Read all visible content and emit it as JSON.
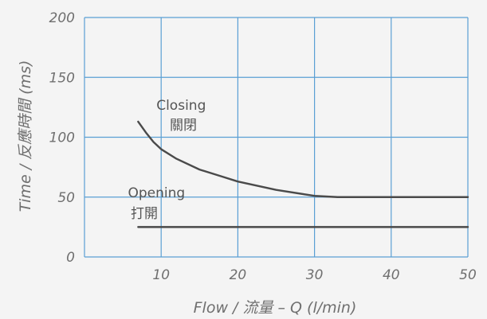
{
  "chart_data": {
    "type": "line",
    "xlabel": "Flow / 流量 – Q (l/min)",
    "ylabel": "Time / 反應時間 (ms)",
    "xlim": [
      0,
      50
    ],
    "ylim": [
      0,
      200
    ],
    "x_ticks": [
      "10",
      "20",
      "30",
      "40",
      "50"
    ],
    "y_ticks": [
      "0",
      "50",
      "100",
      "150",
      "200"
    ],
    "grid": true,
    "colors": {
      "grid": "#5a9fd4",
      "line": "#4a4a4a",
      "background": "#f4f4f4"
    },
    "series": [
      {
        "label": "closing",
        "points": [
          [
            7,
            113
          ],
          [
            8,
            104
          ],
          [
            9,
            96
          ],
          [
            10,
            90
          ],
          [
            12,
            82
          ],
          [
            15,
            73
          ],
          [
            18,
            67
          ],
          [
            20,
            63
          ],
          [
            25,
            56
          ],
          [
            30,
            51
          ],
          [
            33,
            50
          ],
          [
            35,
            50
          ],
          [
            40,
            50
          ],
          [
            45,
            50
          ],
          [
            50,
            50
          ]
        ]
      },
      {
        "label": "opening",
        "points": [
          [
            7,
            25
          ],
          [
            50,
            25
          ]
        ]
      }
    ],
    "annotations": [
      {
        "lines": [
          "Closing",
          "關閉"
        ],
        "series": "closing"
      },
      {
        "lines": [
          "Opening",
          "打開"
        ],
        "series": "opening"
      }
    ]
  }
}
